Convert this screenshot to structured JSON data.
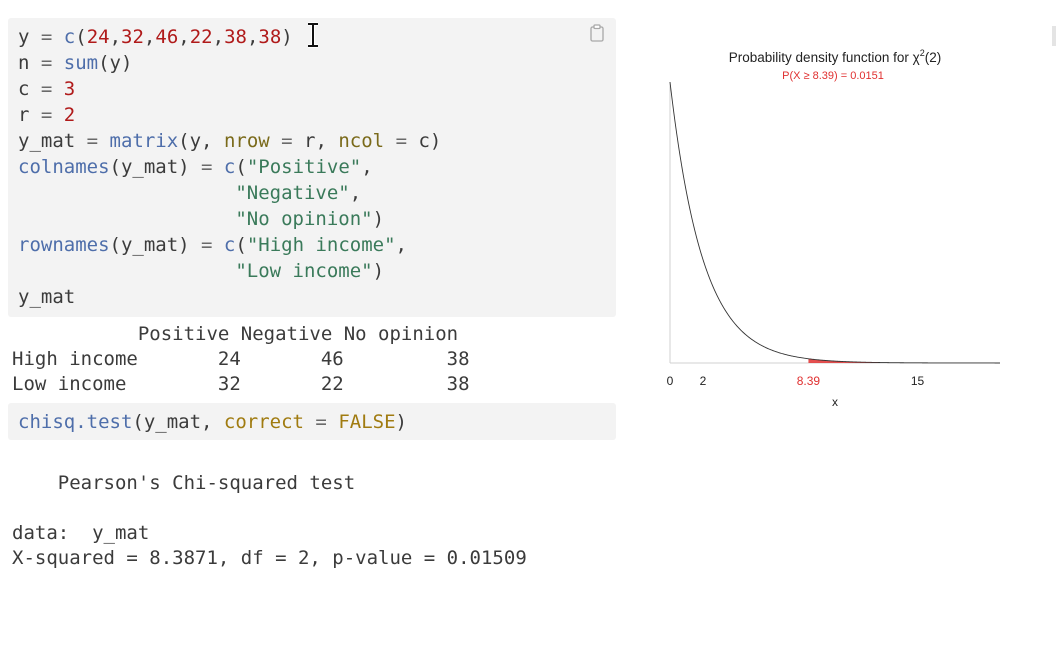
{
  "code_cell_1": {
    "lines": [
      [
        [
          "id",
          "y "
        ],
        [
          "op",
          "= "
        ],
        [
          "fn",
          "c"
        ],
        [
          "id",
          "("
        ],
        [
          "num",
          "24"
        ],
        [
          "id",
          ","
        ],
        [
          "num",
          "32"
        ],
        [
          "id",
          ","
        ],
        [
          "num",
          "46"
        ],
        [
          "id",
          ","
        ],
        [
          "num",
          "22"
        ],
        [
          "id",
          ","
        ],
        [
          "num",
          "38"
        ],
        [
          "id",
          ","
        ],
        [
          "num",
          "38"
        ],
        [
          "id",
          ")"
        ]
      ],
      [
        [
          "id",
          "n "
        ],
        [
          "op",
          "= "
        ],
        [
          "fn",
          "sum"
        ],
        [
          "id",
          "(y)"
        ]
      ],
      [
        [
          "id",
          "c "
        ],
        [
          "op",
          "= "
        ],
        [
          "num",
          "3"
        ]
      ],
      [
        [
          "id",
          "r "
        ],
        [
          "op",
          "= "
        ],
        [
          "num",
          "2"
        ]
      ],
      [
        [
          "id",
          "y_mat "
        ],
        [
          "op",
          "= "
        ],
        [
          "fn",
          "matrix"
        ],
        [
          "id",
          "(y, "
        ],
        [
          "arg",
          "nrow"
        ],
        [
          "op",
          " = "
        ],
        [
          "id",
          "r, "
        ],
        [
          "arg",
          "ncol"
        ],
        [
          "op",
          " = "
        ],
        [
          "id",
          "c)"
        ]
      ],
      [
        [
          "fn",
          "colnames"
        ],
        [
          "id",
          "(y_mat) "
        ],
        [
          "op",
          "= "
        ],
        [
          "fn",
          "c"
        ],
        [
          "id",
          "("
        ],
        [
          "str",
          "\"Positive\""
        ],
        [
          "id",
          ","
        ]
      ],
      [
        [
          "id",
          "                   "
        ],
        [
          "str",
          "\"Negative\""
        ],
        [
          "id",
          ","
        ]
      ],
      [
        [
          "id",
          "                   "
        ],
        [
          "str",
          "\"No opinion\""
        ],
        [
          "id",
          ")"
        ]
      ],
      [
        [
          "fn",
          "rownames"
        ],
        [
          "id",
          "(y_mat) "
        ],
        [
          "op",
          "= "
        ],
        [
          "fn",
          "c"
        ],
        [
          "id",
          "("
        ],
        [
          "str",
          "\"High income\""
        ],
        [
          "id",
          ","
        ]
      ],
      [
        [
          "id",
          "                   "
        ],
        [
          "str",
          "\"Low income\""
        ],
        [
          "id",
          ")"
        ]
      ],
      [
        [
          "id",
          "y_mat"
        ]
      ]
    ]
  },
  "output_1": {
    "lines": [
      "           Positive Negative No opinion",
      "High income       24       46         38",
      "Low income        32       22         38"
    ]
  },
  "code_cell_2": {
    "lines": [
      [
        [
          "fn",
          "chisq.test"
        ],
        [
          "id",
          "(y_mat, "
        ],
        [
          "kw",
          "correct"
        ],
        [
          "op",
          " = "
        ],
        [
          "kw",
          "FALSE"
        ],
        [
          "id",
          ")"
        ]
      ]
    ]
  },
  "output_2": {
    "lines": [
      "    Pearson's Chi-squared test",
      "",
      "data:  y_mat",
      "X-squared = 8.3871, df = 2, p-value = 0.01509"
    ]
  },
  "colors": {
    "code_bg": "#f3f3f3",
    "function": "#4e6eaa",
    "number": "#b01a1a",
    "string": "#3a7a5a",
    "argument": "#7a6a1a",
    "keyword": "#a07b10",
    "text": "#3b3b3b",
    "highlight_red": "#e03030"
  },
  "chart_data": {
    "type": "line",
    "title_prefix": "Probability density function for χ",
    "title_superscript": "2",
    "title_suffix": "(2)",
    "subtitle": "P(X ≥ 8.39) = 0.0151",
    "xlabel": "x",
    "ylabel": "",
    "xlim": [
      0,
      20
    ],
    "ylim": [
      0,
      0.5
    ],
    "x_ticks": [
      "0",
      "2",
      "8.39",
      "15"
    ],
    "x_tick_values": [
      0,
      2,
      8.39,
      15
    ],
    "highlight_tick": "8.39",
    "df": 2,
    "shade_from": 8.39,
    "shade_to": 20,
    "series": [
      {
        "x": [
          0,
          0.5,
          1,
          1.5,
          2,
          3,
          4,
          5,
          6,
          7,
          8,
          8.39,
          10,
          12,
          15,
          20
        ],
        "y": [
          0.5,
          0.3894,
          0.3033,
          0.2362,
          0.1839,
          0.1116,
          0.0677,
          0.041,
          0.0249,
          0.0151,
          0.0092,
          0.0075,
          0.0034,
          0.0012,
          0.0003,
          2e-05
        ]
      }
    ],
    "grid": false,
    "legend": "none"
  }
}
